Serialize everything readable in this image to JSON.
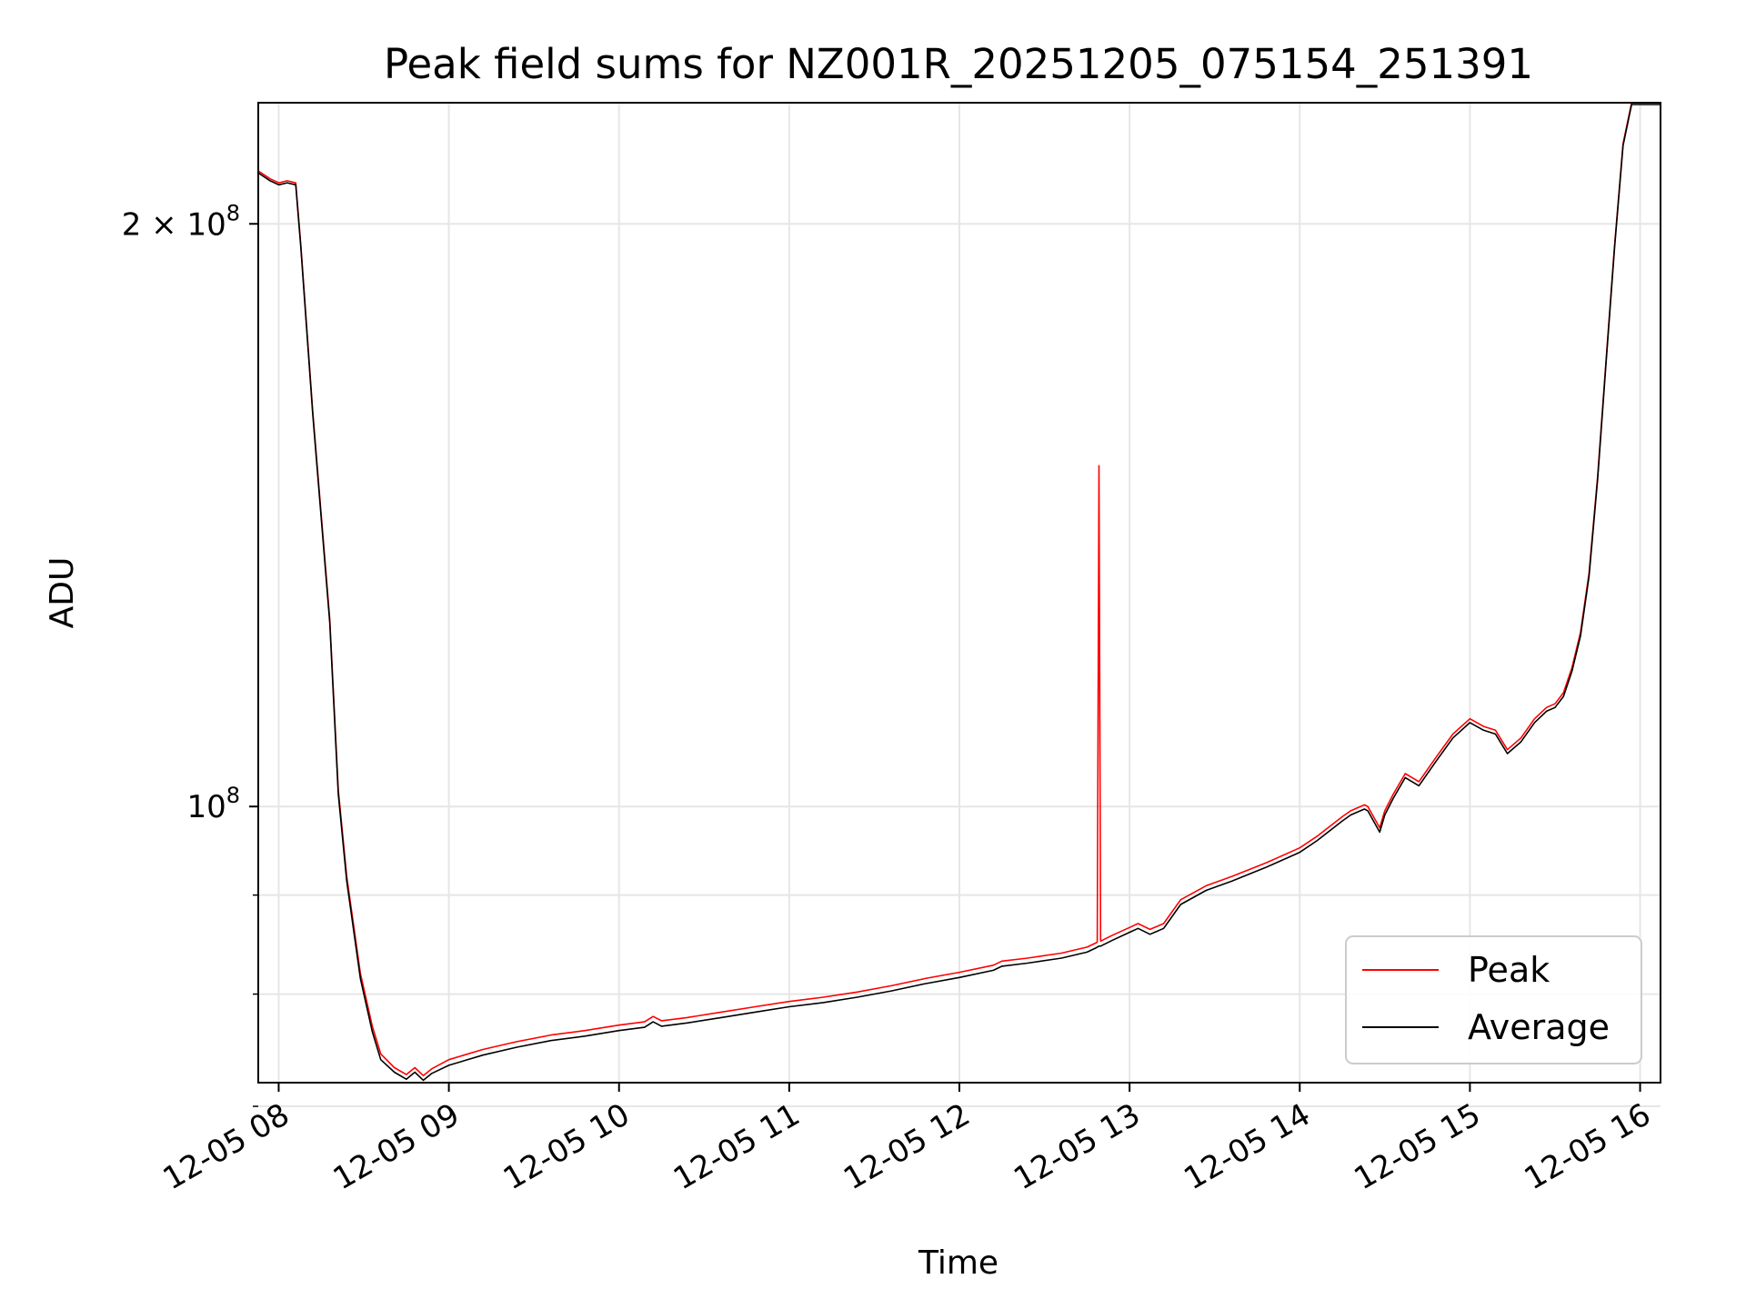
{
  "chart_data": {
    "type": "line",
    "title": "Peak field sums for NZ001R_20251205_075154_251391",
    "xlabel": "Time",
    "ylabel": "ADU",
    "yscale": "log",
    "grid": true,
    "legend_position": "lower-right",
    "xlim": [
      7.88,
      16.12
    ],
    "ylim": [
      72000000,
      231000000
    ],
    "x_ticks": [
      {
        "value": 8,
        "label": "12-05 08"
      },
      {
        "value": 9,
        "label": "12-05 09"
      },
      {
        "value": 10,
        "label": "12-05 10"
      },
      {
        "value": 11,
        "label": "12-05 11"
      },
      {
        "value": 12,
        "label": "12-05 12"
      },
      {
        "value": 13,
        "label": "12-05 13"
      },
      {
        "value": 14,
        "label": "12-05 14"
      },
      {
        "value": 15,
        "label": "12-05 15"
      },
      {
        "value": 16,
        "label": "12-05 16"
      }
    ],
    "y_major_ticks": [
      {
        "value": 100000000,
        "base": "10",
        "exp": "8"
      },
      {
        "value": 200000000,
        "base": "2 × 10",
        "exp": "8"
      }
    ],
    "y_minor_ticks": [
      70000000,
      80000000,
      90000000
    ],
    "series": [
      {
        "name": "Peak",
        "color": "#ff0000",
        "points": [
          [
            7.88,
            213000000
          ],
          [
            7.95,
            211000000
          ],
          [
            8.0,
            210000000
          ],
          [
            8.05,
            210500000
          ],
          [
            8.1,
            210000000
          ],
          [
            8.13,
            195000000
          ],
          [
            8.2,
            160000000
          ],
          [
            8.3,
            125000000
          ],
          [
            8.35,
            102000000
          ],
          [
            8.4,
            92000000
          ],
          [
            8.48,
            82000000
          ],
          [
            8.55,
            77000000
          ],
          [
            8.6,
            74500000
          ],
          [
            8.68,
            73300000
          ],
          [
            8.75,
            72700000
          ],
          [
            8.8,
            73300000
          ],
          [
            8.85,
            72600000
          ],
          [
            8.9,
            73200000
          ],
          [
            9.0,
            74000000
          ],
          [
            9.2,
            74900000
          ],
          [
            9.4,
            75600000
          ],
          [
            9.6,
            76200000
          ],
          [
            9.8,
            76600000
          ],
          [
            10.0,
            77100000
          ],
          [
            10.15,
            77400000
          ],
          [
            10.2,
            77900000
          ],
          [
            10.25,
            77500000
          ],
          [
            10.4,
            77800000
          ],
          [
            10.6,
            78300000
          ],
          [
            10.8,
            78800000
          ],
          [
            11.0,
            79300000
          ],
          [
            11.2,
            79700000
          ],
          [
            11.4,
            80200000
          ],
          [
            11.6,
            80800000
          ],
          [
            11.8,
            81500000
          ],
          [
            12.0,
            82100000
          ],
          [
            12.2,
            82800000
          ],
          [
            12.25,
            83200000
          ],
          [
            12.4,
            83500000
          ],
          [
            12.6,
            84000000
          ],
          [
            12.75,
            84600000
          ],
          [
            12.8,
            85000000
          ],
          [
            12.81,
            85100000
          ],
          [
            12.82,
            150000000
          ],
          [
            12.83,
            85200000
          ],
          [
            12.9,
            85800000
          ],
          [
            13.0,
            86600000
          ],
          [
            13.05,
            87000000
          ],
          [
            13.12,
            86400000
          ],
          [
            13.2,
            87000000
          ],
          [
            13.3,
            89500000
          ],
          [
            13.45,
            91000000
          ],
          [
            13.6,
            92000000
          ],
          [
            13.8,
            93500000
          ],
          [
            14.0,
            95200000
          ],
          [
            14.1,
            96500000
          ],
          [
            14.25,
            98800000
          ],
          [
            14.3,
            99500000
          ],
          [
            14.38,
            100200000
          ],
          [
            14.4,
            100000000
          ],
          [
            14.47,
            97500000
          ],
          [
            14.5,
            99500000
          ],
          [
            14.55,
            101500000
          ],
          [
            14.62,
            104000000
          ],
          [
            14.7,
            103000000
          ],
          [
            14.8,
            106000000
          ],
          [
            14.9,
            109000000
          ],
          [
            15.0,
            111000000
          ],
          [
            15.08,
            110000000
          ],
          [
            15.15,
            109500000
          ],
          [
            15.22,
            107000000
          ],
          [
            15.3,
            108500000
          ],
          [
            15.38,
            111000000
          ],
          [
            15.45,
            112500000
          ],
          [
            15.5,
            113000000
          ],
          [
            15.55,
            114500000
          ],
          [
            15.6,
            118000000
          ],
          [
            15.65,
            123000000
          ],
          [
            15.7,
            132000000
          ],
          [
            15.75,
            148000000
          ],
          [
            15.8,
            170000000
          ],
          [
            15.85,
            195000000
          ],
          [
            15.9,
            220000000
          ],
          [
            15.95,
            231000000
          ],
          [
            16.12,
            231000000
          ]
        ]
      },
      {
        "name": "Average",
        "color": "#000000",
        "points": [
          [
            7.88,
            212500000
          ],
          [
            7.95,
            210500000
          ],
          [
            8.0,
            209500000
          ],
          [
            8.05,
            210000000
          ],
          [
            8.1,
            209500000
          ],
          [
            8.13,
            194500000
          ],
          [
            8.2,
            159500000
          ],
          [
            8.3,
            124500000
          ],
          [
            8.35,
            101500000
          ],
          [
            8.4,
            91500000
          ],
          [
            8.48,
            81500000
          ],
          [
            8.55,
            76500000
          ],
          [
            8.6,
            74000000
          ],
          [
            8.68,
            72900000
          ],
          [
            8.75,
            72300000
          ],
          [
            8.8,
            72900000
          ],
          [
            8.85,
            72200000
          ],
          [
            8.9,
            72800000
          ],
          [
            9.0,
            73500000
          ],
          [
            9.2,
            74400000
          ],
          [
            9.4,
            75100000
          ],
          [
            9.6,
            75700000
          ],
          [
            9.8,
            76100000
          ],
          [
            10.0,
            76600000
          ],
          [
            10.15,
            76900000
          ],
          [
            10.2,
            77400000
          ],
          [
            10.25,
            77000000
          ],
          [
            10.4,
            77300000
          ],
          [
            10.6,
            77800000
          ],
          [
            10.8,
            78300000
          ],
          [
            11.0,
            78800000
          ],
          [
            11.2,
            79200000
          ],
          [
            11.4,
            79700000
          ],
          [
            11.6,
            80300000
          ],
          [
            11.8,
            81000000
          ],
          [
            12.0,
            81600000
          ],
          [
            12.2,
            82300000
          ],
          [
            12.25,
            82700000
          ],
          [
            12.4,
            83000000
          ],
          [
            12.6,
            83500000
          ],
          [
            12.75,
            84100000
          ],
          [
            12.8,
            84500000
          ],
          [
            12.81,
            84600000
          ],
          [
            12.82,
            84700000
          ],
          [
            12.83,
            84700000
          ],
          [
            12.9,
            85300000
          ],
          [
            13.0,
            86100000
          ],
          [
            13.05,
            86500000
          ],
          [
            13.12,
            85900000
          ],
          [
            13.2,
            86500000
          ],
          [
            13.3,
            89000000
          ],
          [
            13.45,
            90500000
          ],
          [
            13.6,
            91500000
          ],
          [
            13.8,
            93000000
          ],
          [
            14.0,
            94700000
          ],
          [
            14.1,
            96000000
          ],
          [
            14.25,
            98300000
          ],
          [
            14.3,
            99000000
          ],
          [
            14.38,
            99700000
          ],
          [
            14.4,
            99500000
          ],
          [
            14.47,
            97000000
          ],
          [
            14.5,
            99000000
          ],
          [
            14.55,
            101000000
          ],
          [
            14.62,
            103500000
          ],
          [
            14.7,
            102500000
          ],
          [
            14.8,
            105500000
          ],
          [
            14.9,
            108500000
          ],
          [
            15.0,
            110500000
          ],
          [
            15.08,
            109500000
          ],
          [
            15.15,
            109000000
          ],
          [
            15.22,
            106500000
          ],
          [
            15.3,
            108000000
          ],
          [
            15.38,
            110500000
          ],
          [
            15.45,
            112000000
          ],
          [
            15.5,
            112500000
          ],
          [
            15.55,
            114000000
          ],
          [
            15.6,
            117500000
          ],
          [
            15.65,
            122500000
          ],
          [
            15.7,
            131500000
          ],
          [
            15.75,
            147500000
          ],
          [
            15.8,
            169500000
          ],
          [
            15.85,
            194500000
          ],
          [
            15.9,
            219500000
          ],
          [
            15.95,
            230500000
          ],
          [
            16.12,
            230500000
          ]
        ]
      }
    ]
  }
}
